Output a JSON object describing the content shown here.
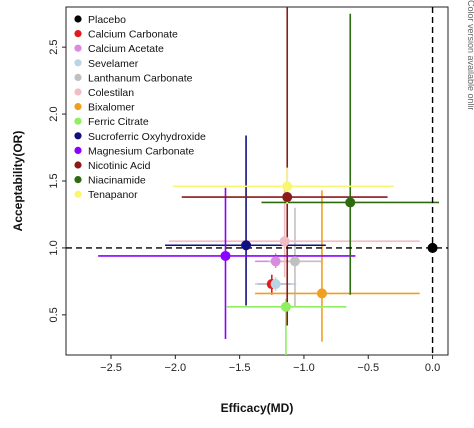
{
  "side_note": "Color version available online",
  "chart_data": {
    "type": "scatter",
    "title": "",
    "xlabel": "Efficacy(MD)",
    "ylabel": "Acceptability(OR)",
    "xlim": [
      -2.85,
      0.12
    ],
    "ylim": [
      0.2,
      2.8
    ],
    "x_ticks": [
      -2.5,
      -2.0,
      -1.5,
      -1.0,
      -0.5,
      0.0
    ],
    "x_tick_labels": [
      "−2.5",
      "−2.0",
      "−1.5",
      "−1.0",
      "−0.5",
      "0.0"
    ],
    "y_ticks": [
      0.5,
      1.0,
      1.5,
      2.0,
      2.5
    ],
    "y_tick_labels": [
      "0.5",
      "1.0",
      "1.5",
      "2.0",
      "2.5"
    ],
    "reference_lines": {
      "x": 0.0,
      "y": 1.0,
      "style": "dashed"
    },
    "grid": false,
    "legend_position": "top-left",
    "series": [
      {
        "name": "Placebo",
        "color": "#000000",
        "x": 0.0,
        "y": 1.0,
        "x_ci": null,
        "y_ci": null
      },
      {
        "name": "Calcium Carbonate",
        "color": "#e31a1c",
        "x": -1.25,
        "y": 0.73,
        "x_ci": [
          -1.36,
          -1.1
        ],
        "y_ci": [
          0.65,
          0.8
        ]
      },
      {
        "name": "Calcium Acetate",
        "color": "#d98cdb",
        "x": -1.22,
        "y": 0.9,
        "x_ci": [
          -1.38,
          -1.06
        ],
        "y_ci": [
          0.85,
          0.96
        ]
      },
      {
        "name": "Sevelamer",
        "color": "#b9d5e5",
        "x": -1.22,
        "y": 0.73,
        "x_ci": [
          -1.38,
          -1.06
        ],
        "y_ci": [
          0.68,
          0.78
        ]
      },
      {
        "name": "Lanthanum Carbonate",
        "color": "#c0c0c0",
        "x": -1.07,
        "y": 0.9,
        "x_ci": [
          -1.28,
          -0.86
        ],
        "y_ci": [
          0.56,
          1.3
        ]
      },
      {
        "name": "Colestilan",
        "color": "#f2bcc4",
        "x": -1.15,
        "y": 1.05,
        "x_ci": [
          -2.05,
          -0.1
        ],
        "y_ci": [
          0.78,
          1.48
        ]
      },
      {
        "name": "Bixalomer",
        "color": "#f0a020",
        "x": -0.86,
        "y": 0.66,
        "x_ci": [
          -1.38,
          -0.1
        ],
        "y_ci": [
          0.3,
          1.43
        ]
      },
      {
        "name": "Ferric Citrate",
        "color": "#90ee60",
        "x": -1.14,
        "y": 0.56,
        "x_ci": [
          -1.6,
          -0.67
        ],
        "y_ci": [
          0.2,
          0.62
        ]
      },
      {
        "name": "Sucroferric Oxyhydroxide",
        "color": "#101080",
        "x": -1.45,
        "y": 1.02,
        "x_ci": [
          -2.08,
          -0.83
        ],
        "y_ci": [
          0.57,
          1.84
        ]
      },
      {
        "name": "Magnesium Carbonate",
        "color": "#8b00ff",
        "x": -1.61,
        "y": 0.94,
        "x_ci": [
          -2.6,
          -0.6
        ],
        "y_ci": [
          0.32,
          1.45
        ]
      },
      {
        "name": "Nicotinic Acid",
        "color": "#8b1a1a",
        "x": -1.13,
        "y": 1.38,
        "x_ci": [
          -1.95,
          -0.35
        ],
        "y_ci": [
          0.42,
          2.8
        ]
      },
      {
        "name": "Niacinamide",
        "color": "#2e6b10",
        "x": -0.64,
        "y": 1.34,
        "x_ci": [
          -1.33,
          0.05
        ],
        "y_ci": [
          0.65,
          2.75
        ]
      },
      {
        "name": "Tenapanor",
        "color": "#f8f870",
        "x": -1.13,
        "y": 1.46,
        "x_ci": [
          -2.02,
          -0.3
        ],
        "y_ci": [
          1.33,
          1.6
        ]
      }
    ]
  }
}
